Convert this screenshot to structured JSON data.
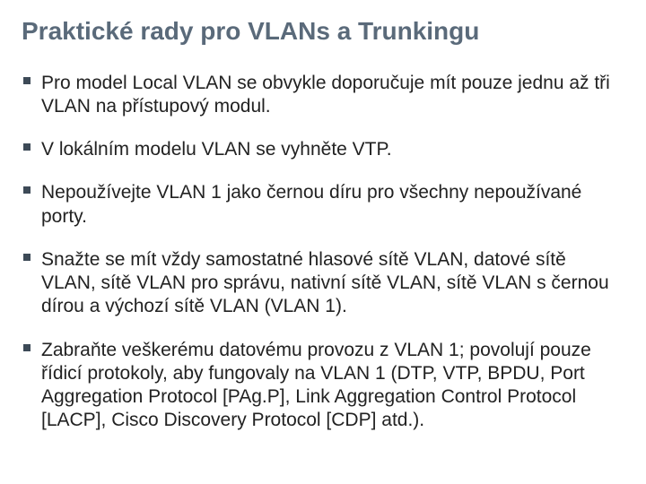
{
  "colors": {
    "title": "#5a6a7a",
    "bullet_marker": "#3d4a57",
    "body_text": "#222222"
  },
  "title": "Praktické rady pro VLANs a Trunkingu",
  "bullets": [
    "Pro model Local VLAN se obvykle doporučuje mít pouze jednu až tři VLAN na přístupový modul.",
    "V lokálním modelu VLAN se vyhněte VTP.",
    "Nepoužívejte VLAN 1 jako černou díru pro všechny nepoužívané porty.",
    "Snažte se mít vždy samostatné hlasové sítě VLAN, datové sítě VLAN, sítě VLAN pro správu, nativní sítě VLAN, sítě VLAN s černou dírou a výchozí sítě VLAN (VLAN 1).",
    "Zabraňte veškerému datovému provozu z VLAN 1; povolují pouze řídicí protokoly, aby fungovaly na VLAN 1 (DTP, VTP, BPDU, Port Aggregation Protocol [PAg.P], Link Aggregation Control Protocol [LACP], Cisco Discovery Protocol [CDP] atd.)."
  ]
}
